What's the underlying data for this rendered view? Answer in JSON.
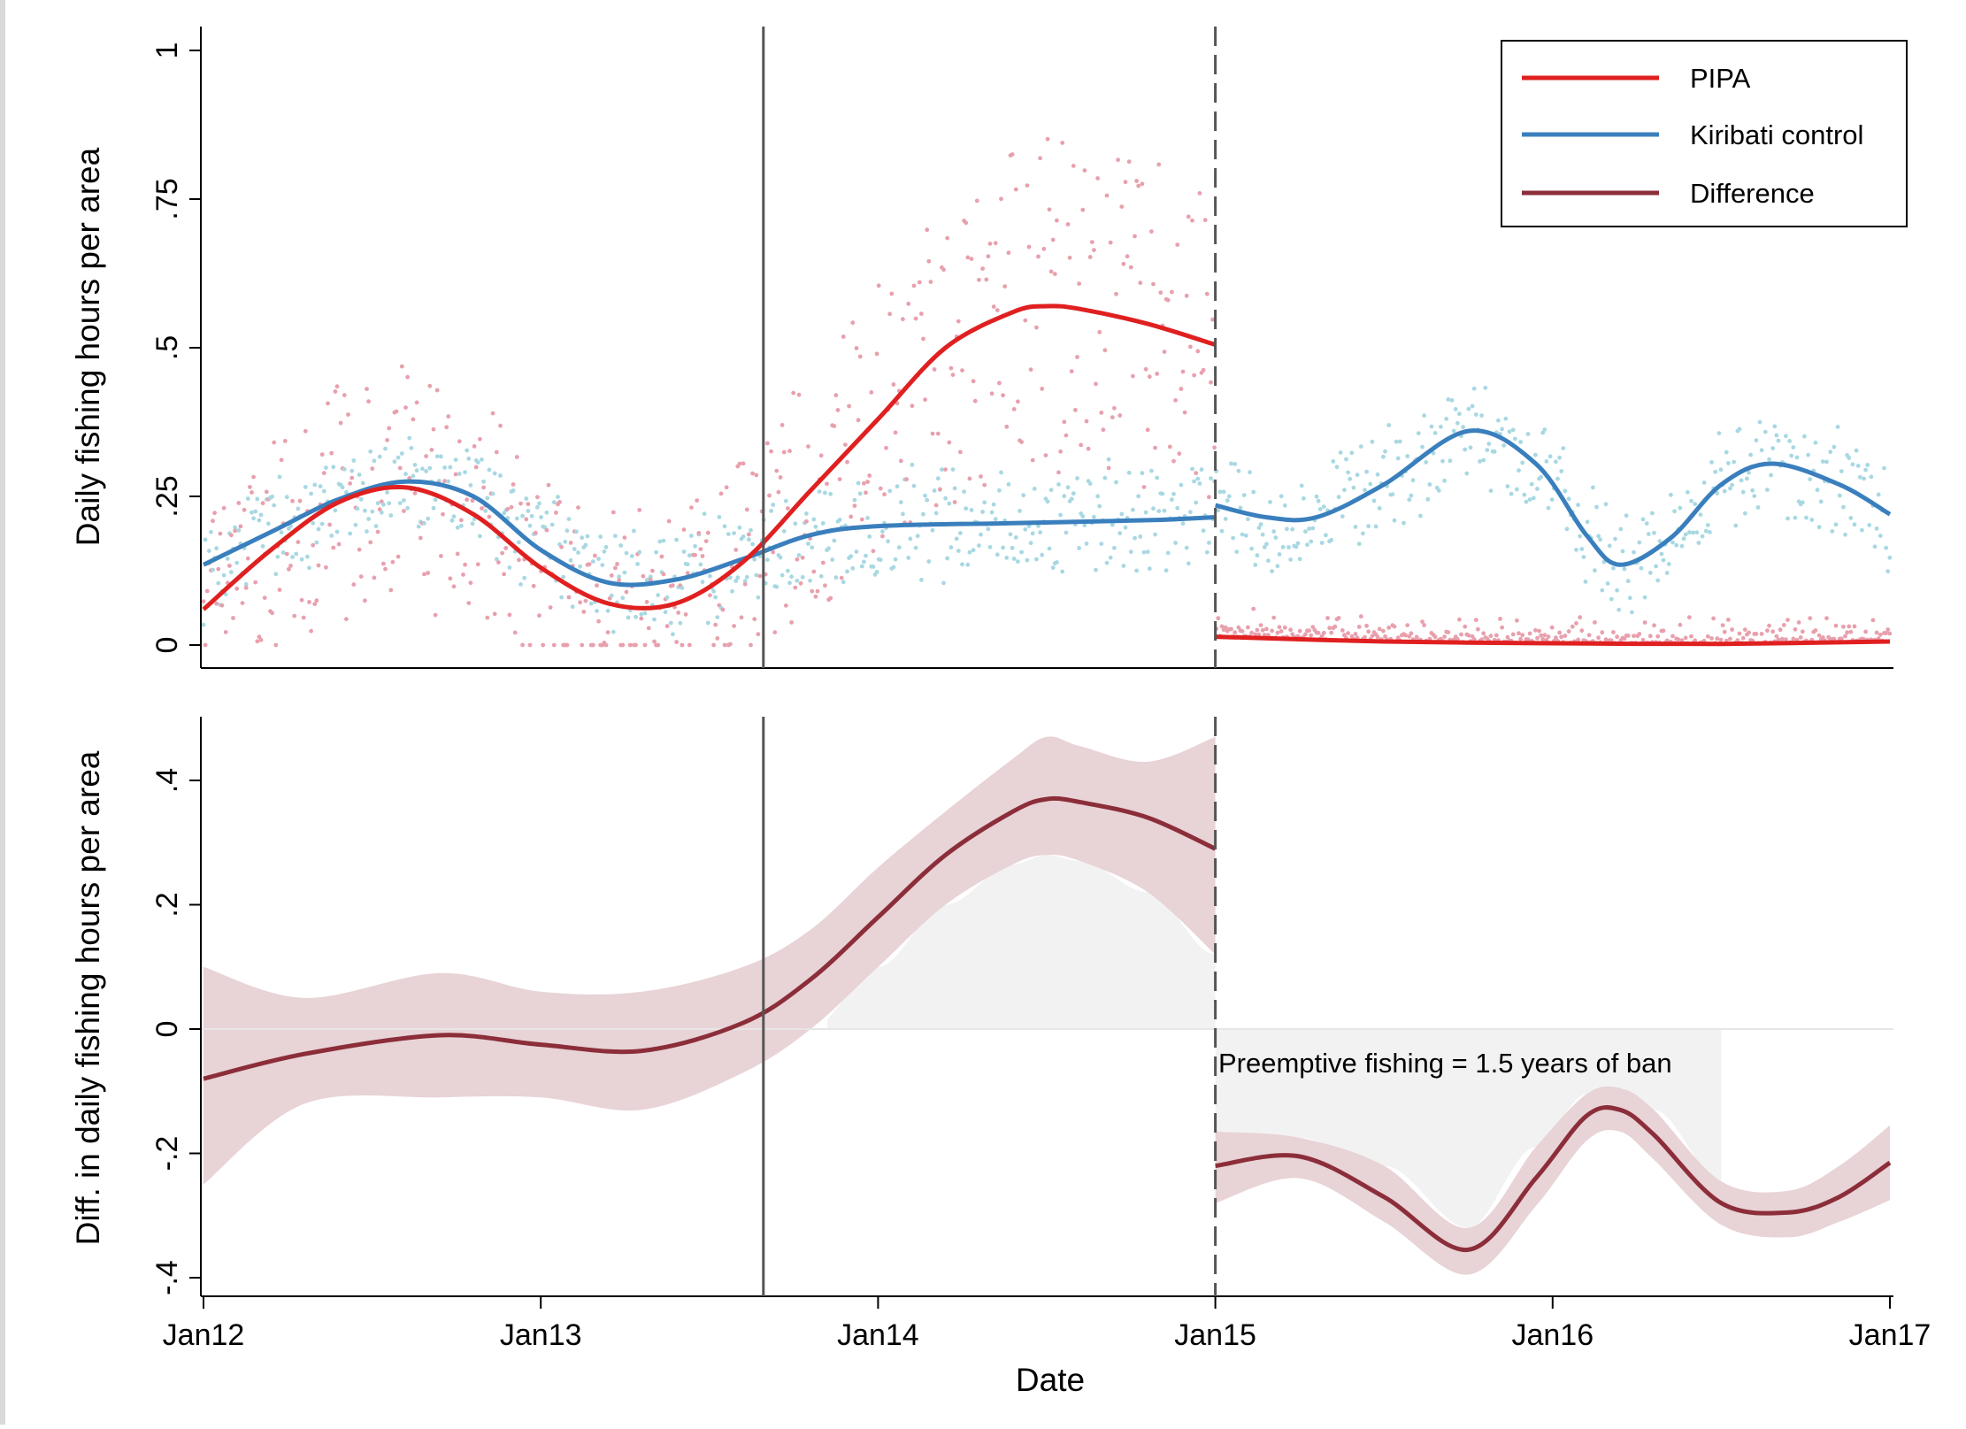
{
  "chart_data": [
    {
      "type": "scatter",
      "panel": "top",
      "ylabel": "Daily fishing hours per area",
      "xlabel": "",
      "ylim": [
        0,
        1
      ],
      "xlim": [
        2012.0,
        2017.05
      ],
      "yticks": [
        {
          "value": 0,
          "label": "0"
        },
        {
          "value": 0.25,
          "label": ".25"
        },
        {
          "value": 0.5,
          "label": ".5"
        },
        {
          "value": 0.75,
          "label": ".75"
        },
        {
          "value": 1,
          "label": "1"
        }
      ],
      "legend": {
        "placement": "top-right",
        "entries": [
          "PIPA",
          "Kiribati control",
          "Difference"
        ]
      },
      "scatter_colors": {
        "PIPA": "#e8a0ad",
        "Kiribati control": "#a8d8e2"
      },
      "series": [
        {
          "name": "PIPA",
          "color": "#e02020",
          "smooth_x": [
            2012.0,
            2012.2,
            2012.4,
            2012.6,
            2012.8,
            2013.0,
            2013.2,
            2013.4,
            2013.6,
            2013.8,
            2014.0,
            2014.2,
            2014.4,
            2014.5,
            2014.6,
            2014.8,
            2015.0
          ],
          "smooth_y": [
            0.06,
            0.16,
            0.24,
            0.265,
            0.22,
            0.13,
            0.07,
            0.07,
            0.14,
            0.26,
            0.38,
            0.5,
            0.56,
            0.57,
            0.565,
            0.54,
            0.505
          ],
          "post_x": [
            2015.0,
            2015.5,
            2016.0,
            2016.5,
            2017.0
          ],
          "post_y": [
            0.014,
            0.006,
            0.003,
            0.002,
            0.006
          ]
        },
        {
          "name": "Kiribati control",
          "color": "#3a7fbd",
          "smooth_x": [
            2012.0,
            2012.2,
            2012.4,
            2012.6,
            2012.8,
            2013.0,
            2013.2,
            2013.4,
            2013.6,
            2013.8,
            2014.0,
            2014.4,
            2014.8,
            2015.0
          ],
          "smooth_y": [
            0.135,
            0.19,
            0.245,
            0.275,
            0.25,
            0.16,
            0.105,
            0.11,
            0.145,
            0.185,
            0.2,
            0.205,
            0.21,
            0.215
          ],
          "post_x": [
            2015.0,
            2015.15,
            2015.3,
            2015.5,
            2015.75,
            2015.95,
            2016.1,
            2016.2,
            2016.35,
            2016.5,
            2016.65,
            2016.85,
            2017.0
          ],
          "post_y": [
            0.235,
            0.215,
            0.215,
            0.27,
            0.36,
            0.305,
            0.185,
            0.135,
            0.18,
            0.27,
            0.305,
            0.27,
            0.22
          ]
        }
      ],
      "annotations": {
        "solid_vline_x": 2013.66,
        "dashed_vline_x": 2015.0
      }
    },
    {
      "type": "line",
      "panel": "bottom",
      "ylabel": "Diff. in daily fishing hours per area",
      "xlabel": "Date",
      "ylim": [
        -0.4,
        0.5
      ],
      "xlim": [
        2012.0,
        2017.05
      ],
      "yticks": [
        {
          "value": -0.4,
          "label": "-.4"
        },
        {
          "value": -0.2,
          "label": "-.2"
        },
        {
          "value": 0,
          "label": "0"
        },
        {
          "value": 0.2,
          "label": ".2"
        },
        {
          "value": 0.4,
          "label": ".4"
        }
      ],
      "xticks": [
        {
          "value": 2012,
          "label": "Jan12"
        },
        {
          "value": 2013,
          "label": "Jan13"
        },
        {
          "value": 2014,
          "label": "Jan14"
        },
        {
          "value": 2015,
          "label": "Jan15"
        },
        {
          "value": 2016,
          "label": "Jan16"
        },
        {
          "value": 2017,
          "label": "Jan17"
        }
      ],
      "series": [
        {
          "name": "Difference",
          "color": "#8b2e3a",
          "band_color": "#e8d3d6",
          "pre_x": [
            2012.0,
            2012.3,
            2012.7,
            2013.0,
            2013.3,
            2013.6,
            2013.8,
            2014.0,
            2014.2,
            2014.4,
            2014.5,
            2014.6,
            2014.8,
            2015.0
          ],
          "pre_y": [
            -0.08,
            -0.04,
            -0.01,
            -0.025,
            -0.035,
            0.01,
            0.08,
            0.18,
            0.28,
            0.35,
            0.37,
            0.365,
            0.34,
            0.29
          ],
          "pre_upper": [
            0.1,
            0.05,
            0.09,
            0.06,
            0.06,
            0.1,
            0.16,
            0.26,
            0.35,
            0.435,
            0.47,
            0.455,
            0.43,
            0.47
          ],
          "pre_lower": [
            -0.25,
            -0.12,
            -0.11,
            -0.11,
            -0.13,
            -0.07,
            0.0,
            0.1,
            0.2,
            0.265,
            0.28,
            0.27,
            0.22,
            0.12
          ],
          "post_x": [
            2015.0,
            2015.25,
            2015.5,
            2015.75,
            2015.95,
            2016.1,
            2016.2,
            2016.3,
            2016.5,
            2016.7,
            2016.85,
            2017.0
          ],
          "post_y": [
            -0.22,
            -0.205,
            -0.27,
            -0.355,
            -0.24,
            -0.14,
            -0.13,
            -0.17,
            -0.28,
            -0.295,
            -0.27,
            -0.215
          ],
          "post_upper": [
            -0.165,
            -0.175,
            -0.22,
            -0.32,
            -0.19,
            -0.105,
            -0.095,
            -0.13,
            -0.245,
            -0.26,
            -0.22,
            -0.155
          ],
          "post_lower": [
            -0.28,
            -0.24,
            -0.31,
            -0.395,
            -0.285,
            -0.18,
            -0.165,
            -0.21,
            -0.315,
            -0.335,
            -0.31,
            -0.275
          ]
        }
      ],
      "annotations": {
        "solid_vline_x": 2013.66,
        "dashed_vline_x": 2015.0,
        "text": "Preemptive fishing = 1.5 years of ban",
        "shaded_region_x": [
          2015.0,
          2016.5
        ]
      }
    }
  ]
}
